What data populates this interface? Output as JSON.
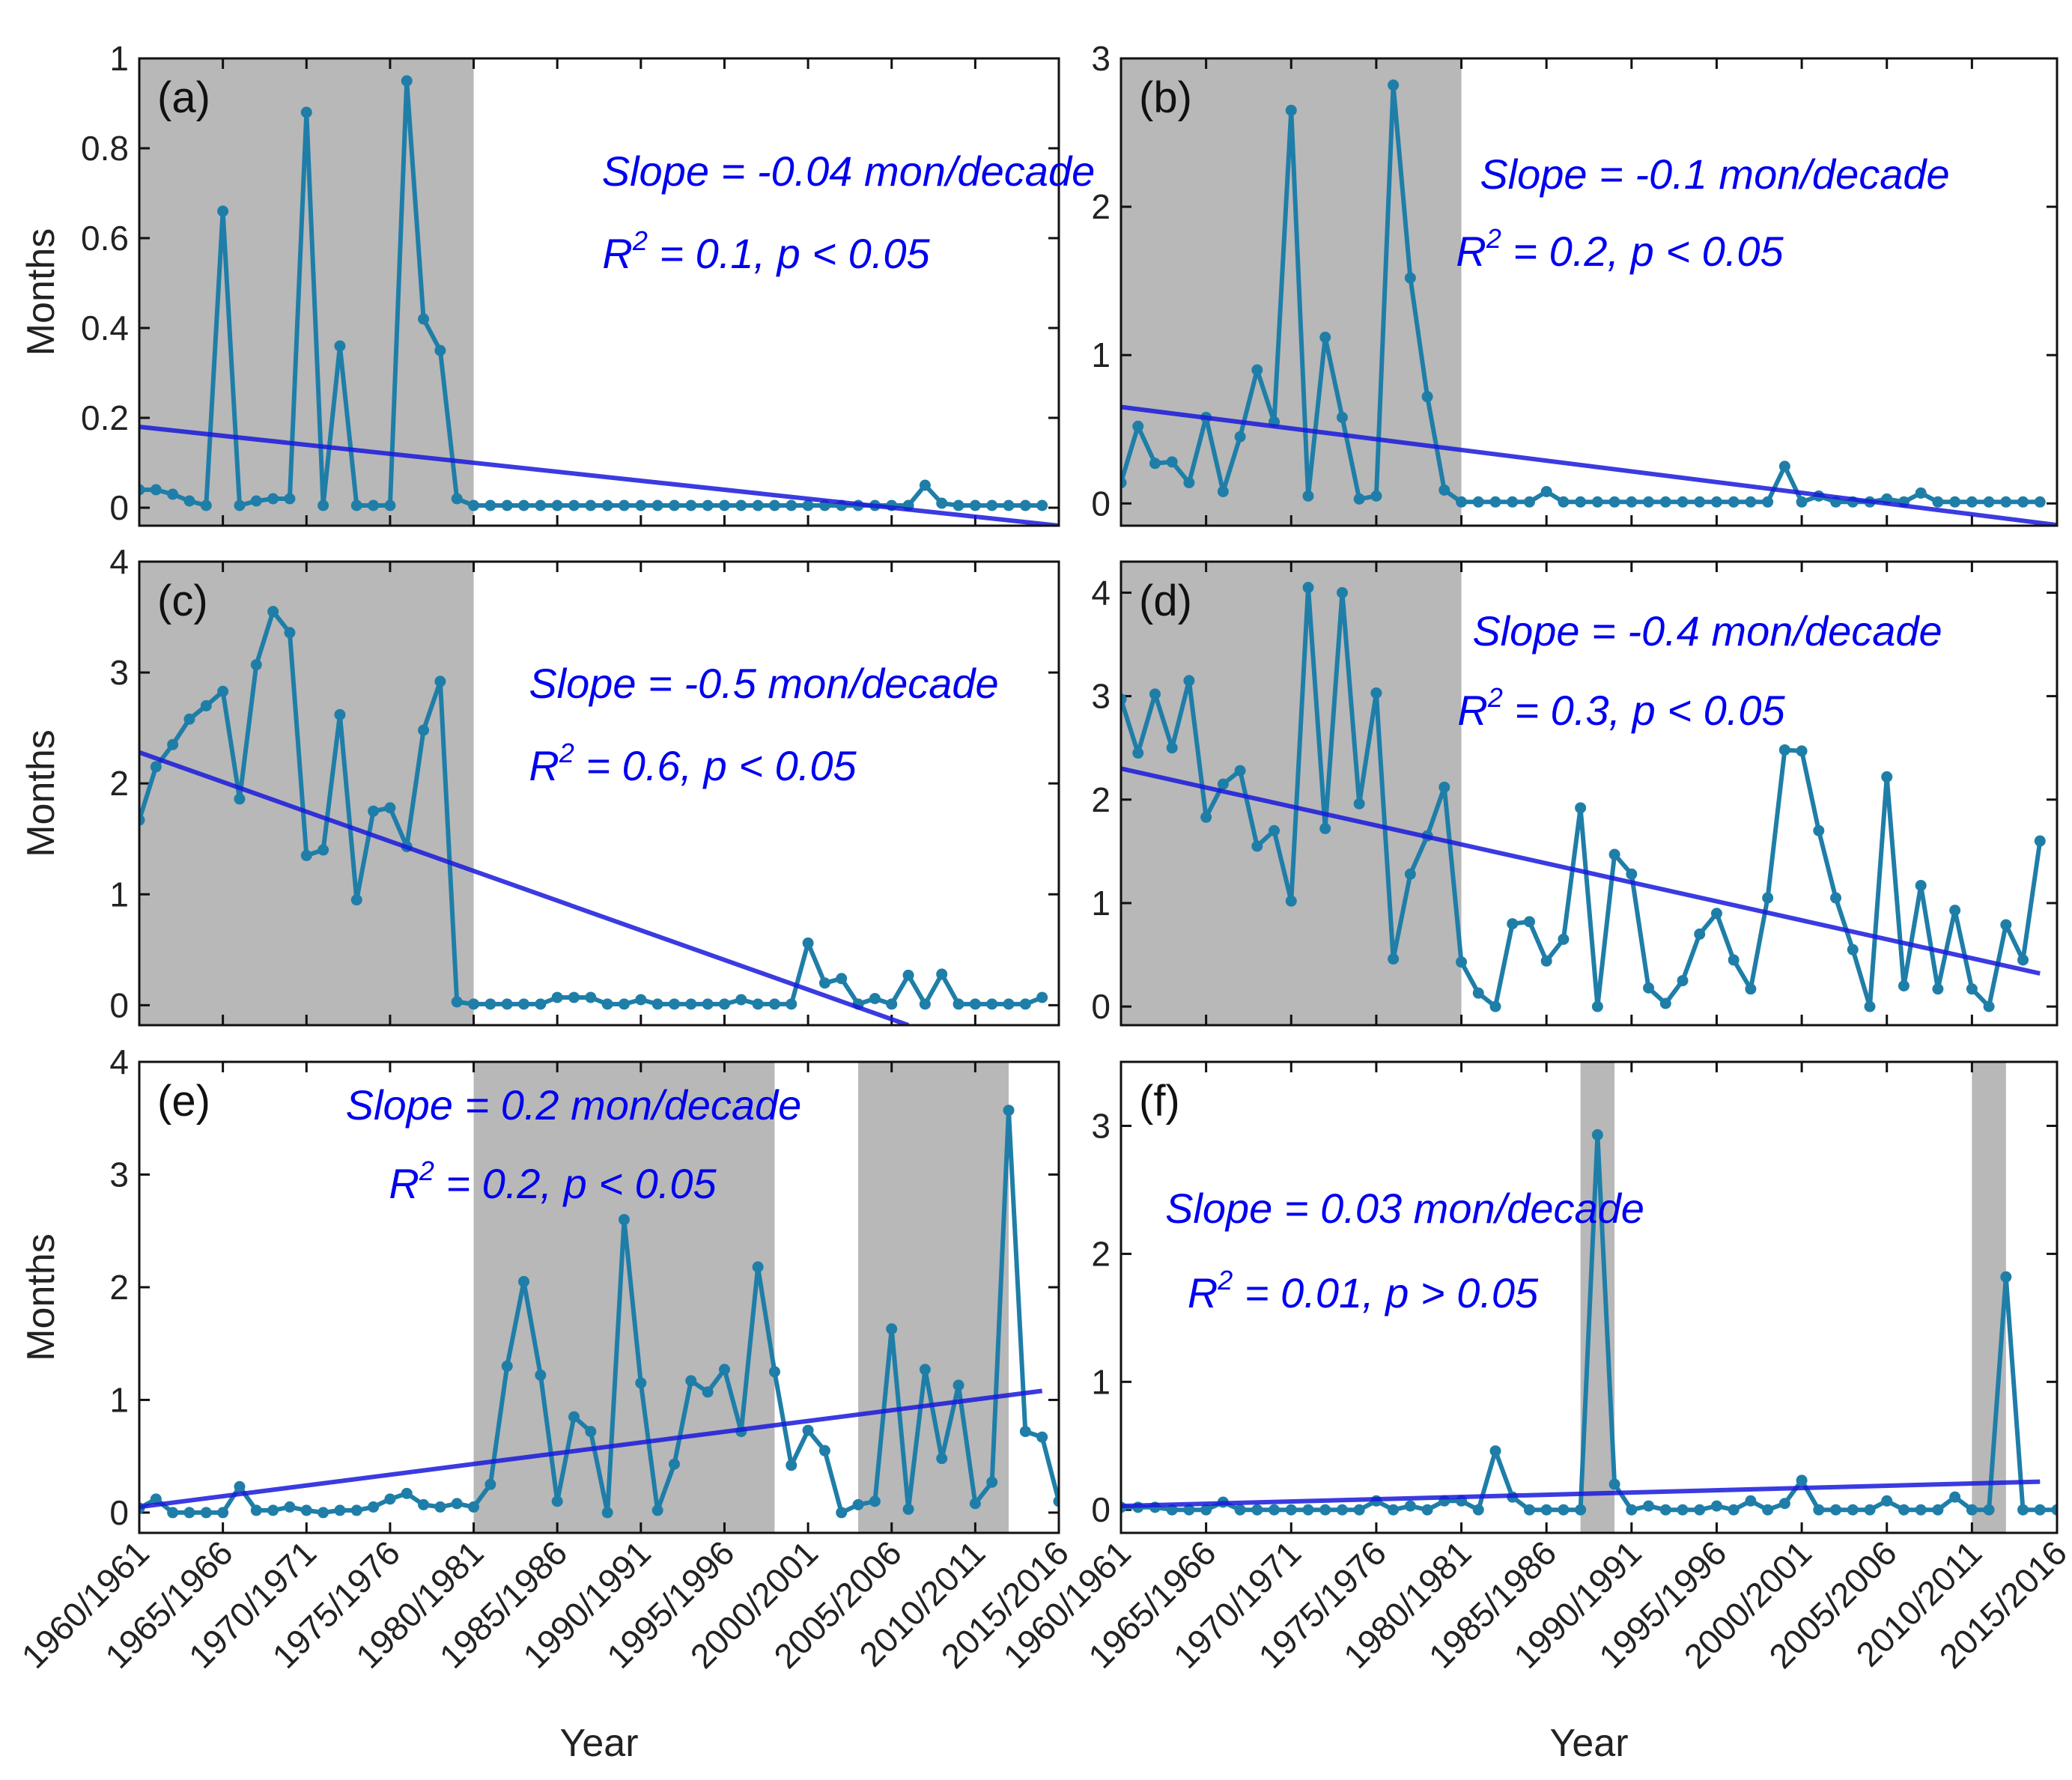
{
  "colors": {
    "series": "#1f7ea8",
    "trend": "#1a1adc",
    "shade": "#b8b8b8",
    "annotation": "#0000f0",
    "axis": "#111111"
  },
  "x_axis": {
    "label": "Year",
    "tick_labels": [
      "1960/1961",
      "1965/1966",
      "1970/1971",
      "1975/1976",
      "1980/1981",
      "1985/1986",
      "1990/1991",
      "1995/1996",
      "2000/2001",
      "2005/2006",
      "2010/2011",
      "2015/2016"
    ],
    "tick_years": [
      1960,
      1965,
      1970,
      1975,
      1980,
      1985,
      1990,
      1995,
      2000,
      2005,
      2010,
      2015
    ],
    "xlim": [
      1960,
      2015
    ]
  },
  "chart_data": [
    {
      "type": "line",
      "panel": "(a)",
      "ylabel": "Months",
      "ylim": [
        -0.04,
        1
      ],
      "yticks": [
        0,
        0.2,
        0.4,
        0.6,
        0.8,
        1
      ],
      "ytick_labels": [
        "0",
        "0.2",
        "0.4",
        "0.6",
        "0.8",
        "1"
      ],
      "shaded": [
        [
          1960,
          1980
        ]
      ],
      "x_start": 1960,
      "values": [
        0.04,
        0.04,
        0.03,
        0.015,
        0.005,
        0.66,
        0.005,
        0.015,
        0.02,
        0.02,
        0.88,
        0.005,
        0.36,
        0.005,
        0.005,
        0.005,
        0.95,
        0.42,
        0.35,
        0.02,
        0.005,
        0.005,
        0.005,
        0.005,
        0.005,
        0.005,
        0.005,
        0.005,
        0.005,
        0.005,
        0.005,
        0.005,
        0.005,
        0.005,
        0.005,
        0.005,
        0.005,
        0.005,
        0.005,
        0.005,
        0.005,
        0.005,
        0.005,
        0.005,
        0.005,
        0.005,
        0.005,
        0.05,
        0.01,
        0.005,
        0.005,
        0.005,
        0.005,
        0.005,
        0.005
      ],
      "trend": {
        "x": [
          1960,
          2016
        ],
        "y": [
          0.18,
          -0.044
        ]
      },
      "annotation": {
        "slope": "Slope = -0.04 mon/decade",
        "r2_prefix": "R",
        "r2_sup": "2",
        "r2_rest": " = 0.1, p < 0.05"
      }
    },
    {
      "type": "line",
      "panel": "(b)",
      "ylabel": "",
      "ylim": [
        -0.15,
        3
      ],
      "yticks": [
        0,
        1,
        2,
        3
      ],
      "ytick_labels": [
        "0",
        "1",
        "2",
        "3"
      ],
      "shaded": [
        [
          1960,
          1980
        ]
      ],
      "x_start": 1960,
      "values": [
        0.14,
        0.52,
        0.27,
        0.28,
        0.14,
        0.58,
        0.08,
        0.45,
        0.9,
        0.55,
        2.65,
        0.05,
        1.12,
        0.58,
        0.03,
        0.05,
        2.82,
        1.52,
        0.72,
        0.09,
        0.01,
        0.01,
        0.01,
        0.01,
        0.01,
        0.08,
        0.01,
        0.01,
        0.01,
        0.01,
        0.01,
        0.01,
        0.01,
        0.01,
        0.01,
        0.01,
        0.01,
        0.01,
        0.01,
        0.25,
        0.01,
        0.05,
        0.01,
        0.01,
        0.01,
        0.03,
        0.01,
        0.07,
        0.01,
        0.01,
        0.01,
        0.01,
        0.01,
        0.01,
        0.01
      ],
      "trend": {
        "x": [
          1960,
          2016
        ],
        "y": [
          0.65,
          -0.16
        ]
      },
      "annotation": {
        "slope": "Slope = -0.1 mon/decade",
        "r2_prefix": "R",
        "r2_sup": "2",
        "r2_rest": " = 0.2, p < 0.05"
      }
    },
    {
      "type": "line",
      "panel": "(c)",
      "ylabel": "Months",
      "ylim": [
        -0.18,
        4
      ],
      "yticks": [
        0,
        1,
        2,
        3,
        4
      ],
      "ytick_labels": [
        "0",
        "1",
        "2",
        "3",
        "4"
      ],
      "shaded": [
        [
          1960,
          1980
        ]
      ],
      "x_start": 1960,
      "values": [
        1.67,
        2.15,
        2.35,
        2.58,
        2.7,
        2.83,
        1.86,
        3.07,
        3.55,
        3.36,
        1.35,
        1.4,
        2.62,
        0.95,
        1.75,
        1.78,
        1.43,
        2.48,
        2.92,
        0.03,
        0.01,
        0.01,
        0.01,
        0.01,
        0.01,
        0.07,
        0.07,
        0.07,
        0.01,
        0.01,
        0.05,
        0.01,
        0.01,
        0.01,
        0.01,
        0.01,
        0.05,
        0.01,
        0.01,
        0.01,
        0.56,
        0.2,
        0.24,
        0.01,
        0.06,
        0.01,
        0.27,
        0.01,
        0.28,
        0.01,
        0.01,
        0.01,
        0.01,
        0.01,
        0.07
      ],
      "trend": {
        "x": [
          1960,
          2006
        ],
        "y": [
          2.28,
          -0.18
        ]
      },
      "annotation": {
        "slope": "Slope = -0.5 mon/decade",
        "r2_prefix": "R",
        "r2_sup": "2",
        "r2_rest": " = 0.6, p < 0.05"
      }
    },
    {
      "type": "line",
      "panel": "(d)",
      "ylabel": "",
      "ylim": [
        -0.18,
        4.3
      ],
      "yticks": [
        0,
        1,
        2,
        3,
        4
      ],
      "ytick_labels": [
        "0",
        "1",
        "2",
        "3",
        "4"
      ],
      "shaded": [
        [
          1960,
          1980
        ]
      ],
      "x_start": 1960,
      "values": [
        2.97,
        2.45,
        3.02,
        2.5,
        3.15,
        1.83,
        2.15,
        2.28,
        1.55,
        1.7,
        1.02,
        4.05,
        1.72,
        4.0,
        1.96,
        3.03,
        0.46,
        1.28,
        1.65,
        2.12,
        0.43,
        0.13,
        0.0,
        0.8,
        0.82,
        0.44,
        0.65,
        1.92,
        0.0,
        1.47,
        1.28,
        0.18,
        0.03,
        0.25,
        0.7,
        0.9,
        0.45,
        0.17,
        1.05,
        2.48,
        2.47,
        1.7,
        1.05,
        0.55,
        0.0,
        2.22,
        0.2,
        1.17,
        0.17,
        0.93,
        0.17,
        0.0,
        0.79,
        0.45,
        1.6
      ],
      "trend": {
        "x": [
          1960,
          2014
        ],
        "y": [
          2.3,
          0.32
        ]
      },
      "annotation": {
        "slope": "Slope = -0.4 mon/decade",
        "r2_prefix": "R",
        "r2_sup": "2",
        "r2_rest": " = 0.3, p < 0.05"
      }
    },
    {
      "type": "line",
      "panel": "(e)",
      "ylabel": "Months",
      "ylim": [
        -0.18,
        4
      ],
      "yticks": [
        0,
        1,
        2,
        3,
        4
      ],
      "ytick_labels": [
        "0",
        "1",
        "2",
        "3",
        "4"
      ],
      "shaded": [
        [
          1980,
          1998
        ],
        [
          2003,
          2012
        ]
      ],
      "x_start": 1960,
      "values": [
        0.04,
        0.12,
        0.0,
        0.0,
        0.0,
        0.0,
        0.23,
        0.02,
        0.02,
        0.05,
        0.02,
        0.0,
        0.02,
        0.02,
        0.05,
        0.12,
        0.17,
        0.07,
        0.05,
        0.08,
        0.05,
        0.25,
        1.3,
        2.05,
        1.22,
        0.1,
        0.85,
        0.72,
        0.0,
        2.6,
        1.15,
        0.02,
        0.43,
        1.17,
        1.07,
        1.27,
        0.72,
        2.18,
        1.25,
        0.42,
        0.73,
        0.55,
        0.0,
        0.07,
        0.1,
        1.63,
        0.03,
        1.27,
        0.48,
        1.13,
        0.08,
        0.27,
        3.57,
        0.72,
        0.67,
        0.1
      ],
      "trend": {
        "x": [
          1960,
          2014
        ],
        "y": [
          0.05,
          1.08
        ]
      },
      "annotation": {
        "slope": "Slope = 0.2 mon/decade",
        "r2_prefix": "R",
        "r2_sup": "2",
        "r2_rest": " = 0.2, p < 0.05"
      }
    },
    {
      "type": "line",
      "panel": "(f)",
      "ylabel": "",
      "ylim": [
        -0.18,
        3.5
      ],
      "yticks": [
        0,
        1,
        2,
        3
      ],
      "ytick_labels": [
        "0",
        "1",
        "2",
        "3"
      ],
      "shaded": [
        [
          1987,
          1989
        ],
        [
          2010,
          2012
        ]
      ],
      "x_start": 1960,
      "values": [
        0.02,
        0.02,
        0.02,
        0.0,
        0.0,
        0.0,
        0.06,
        0.0,
        0.0,
        0.0,
        0.0,
        0.0,
        0.0,
        0.0,
        0.0,
        0.07,
        0.0,
        0.03,
        0.0,
        0.07,
        0.07,
        0.0,
        0.46,
        0.1,
        0.0,
        0.0,
        0.0,
        0.0,
        2.93,
        0.2,
        0.0,
        0.03,
        0.0,
        0.0,
        0.0,
        0.03,
        0.0,
        0.07,
        0.0,
        0.05,
        0.23,
        0.0,
        0.0,
        0.0,
        0.0,
        0.07,
        0.0,
        0.0,
        0.0,
        0.1,
        0.0,
        0.0,
        1.82,
        0.0,
        0.0,
        0.0
      ],
      "trend": {
        "x": [
          1960,
          2014
        ],
        "y": [
          0.03,
          0.22
        ]
      },
      "annotation": {
        "slope": "Slope = 0.03 mon/decade",
        "r2_prefix": "R",
        "r2_sup": "2",
        "r2_rest": " = 0.01, p > 0.05"
      }
    }
  ]
}
